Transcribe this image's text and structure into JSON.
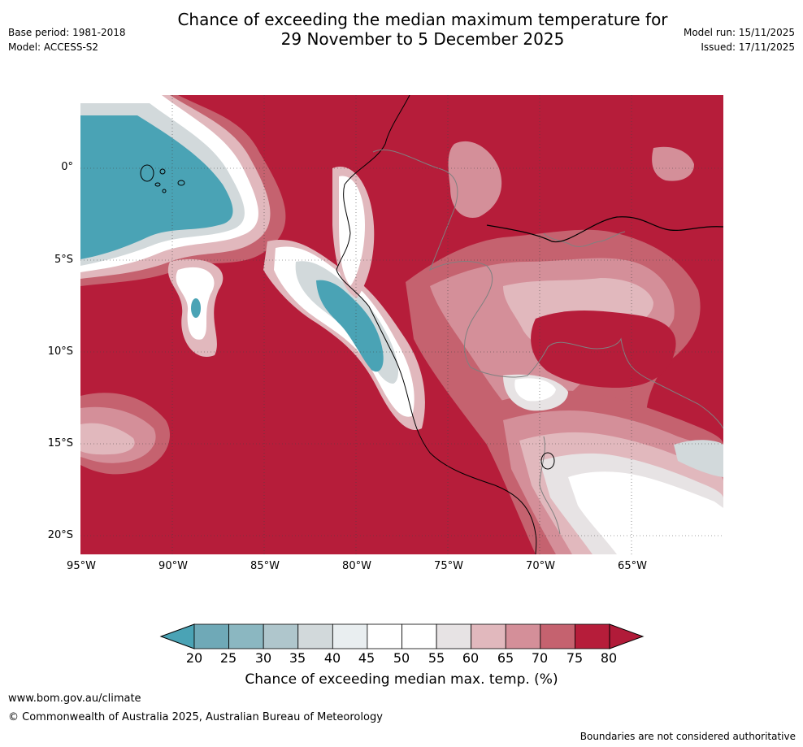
{
  "title": {
    "line1": "Chance of exceeding the median maximum temperature for",
    "line2": "29 November to 5 December 2025"
  },
  "meta_left": {
    "base_period": "Base period: 1981-2018",
    "model": "Model: ACCESS-S2"
  },
  "meta_right": {
    "model_run": "Model run: 15/11/2025",
    "issued": "Issued: 17/11/2025"
  },
  "map": {
    "lat_labels": [
      "0°",
      "5°S",
      "10°S",
      "15°S",
      "20°S"
    ],
    "lon_labels": [
      "95°W",
      "90°W",
      "85°W",
      "80°W",
      "75°W",
      "70°W",
      "65°W"
    ],
    "colors": {
      "c20": "#4aa3b5",
      "c25": "#6fa9b7",
      "c30": "#8bb7c1",
      "c35": "#afc6cc",
      "c40": "#d2d9db",
      "c45": "#e9eef0",
      "c50": "#ffffff",
      "c55": "#ffffff",
      "c60": "#e7e3e4",
      "c65": "#e1b8bd",
      "c70": "#d48f99",
      "c75": "#c5626f",
      "c80": "#b61d3a",
      "c80plus": "#b11b39"
    }
  },
  "colorbar": {
    "ticks": [
      "20",
      "25",
      "30",
      "35",
      "40",
      "45",
      "50",
      "55",
      "60",
      "65",
      "70",
      "75",
      "80"
    ],
    "label": "Chance of exceeding median max. temp. (%)"
  },
  "footer": {
    "url": "www.bom.gov.au/climate",
    "copyright": "© Commonwealth of Australia 2025, Australian Bureau of Meteorology",
    "note": "Boundaries are not considered authoritative"
  }
}
